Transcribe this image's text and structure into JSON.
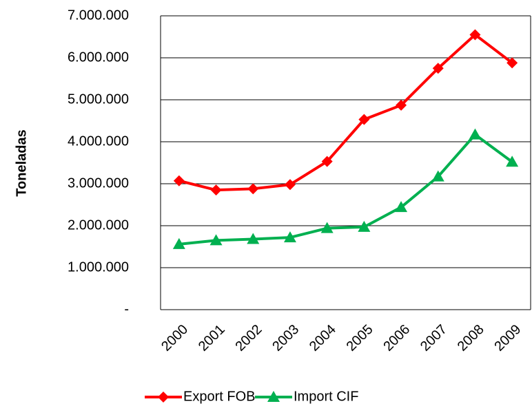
{
  "chart_data": {
    "type": "line",
    "y_label": "Toneladas",
    "categories": [
      "2000",
      "2001",
      "2002",
      "2003",
      "2004",
      "2005",
      "2006",
      "2007",
      "2008",
      "2009"
    ],
    "series": [
      {
        "name": "Export FOB",
        "color": "#ff0000",
        "marker": "diamond",
        "values": [
          3070000,
          2850000,
          2880000,
          2980000,
          3530000,
          4530000,
          4870000,
          5750000,
          6550000,
          5880000
        ]
      },
      {
        "name": "Import CIF",
        "color": "#00b050",
        "marker": "triangle",
        "values": [
          1560000,
          1650000,
          1680000,
          1720000,
          1940000,
          1970000,
          2440000,
          3170000,
          4170000,
          3520000
        ]
      }
    ],
    "ylim": [
      0,
      7000000
    ],
    "yticks": [
      {
        "value": 0,
        "label": "-"
      },
      {
        "value": 1000000,
        "label": "1.000.000"
      },
      {
        "value": 2000000,
        "label": "2.000.000"
      },
      {
        "value": 3000000,
        "label": "3.000.000"
      },
      {
        "value": 4000000,
        "label": "4.000.000"
      },
      {
        "value": 5000000,
        "label": "5.000.000"
      },
      {
        "value": 6000000,
        "label": "6.000.000"
      },
      {
        "value": 7000000,
        "label": "7.000.000"
      }
    ],
    "grid": true,
    "legend": "bottom"
  }
}
